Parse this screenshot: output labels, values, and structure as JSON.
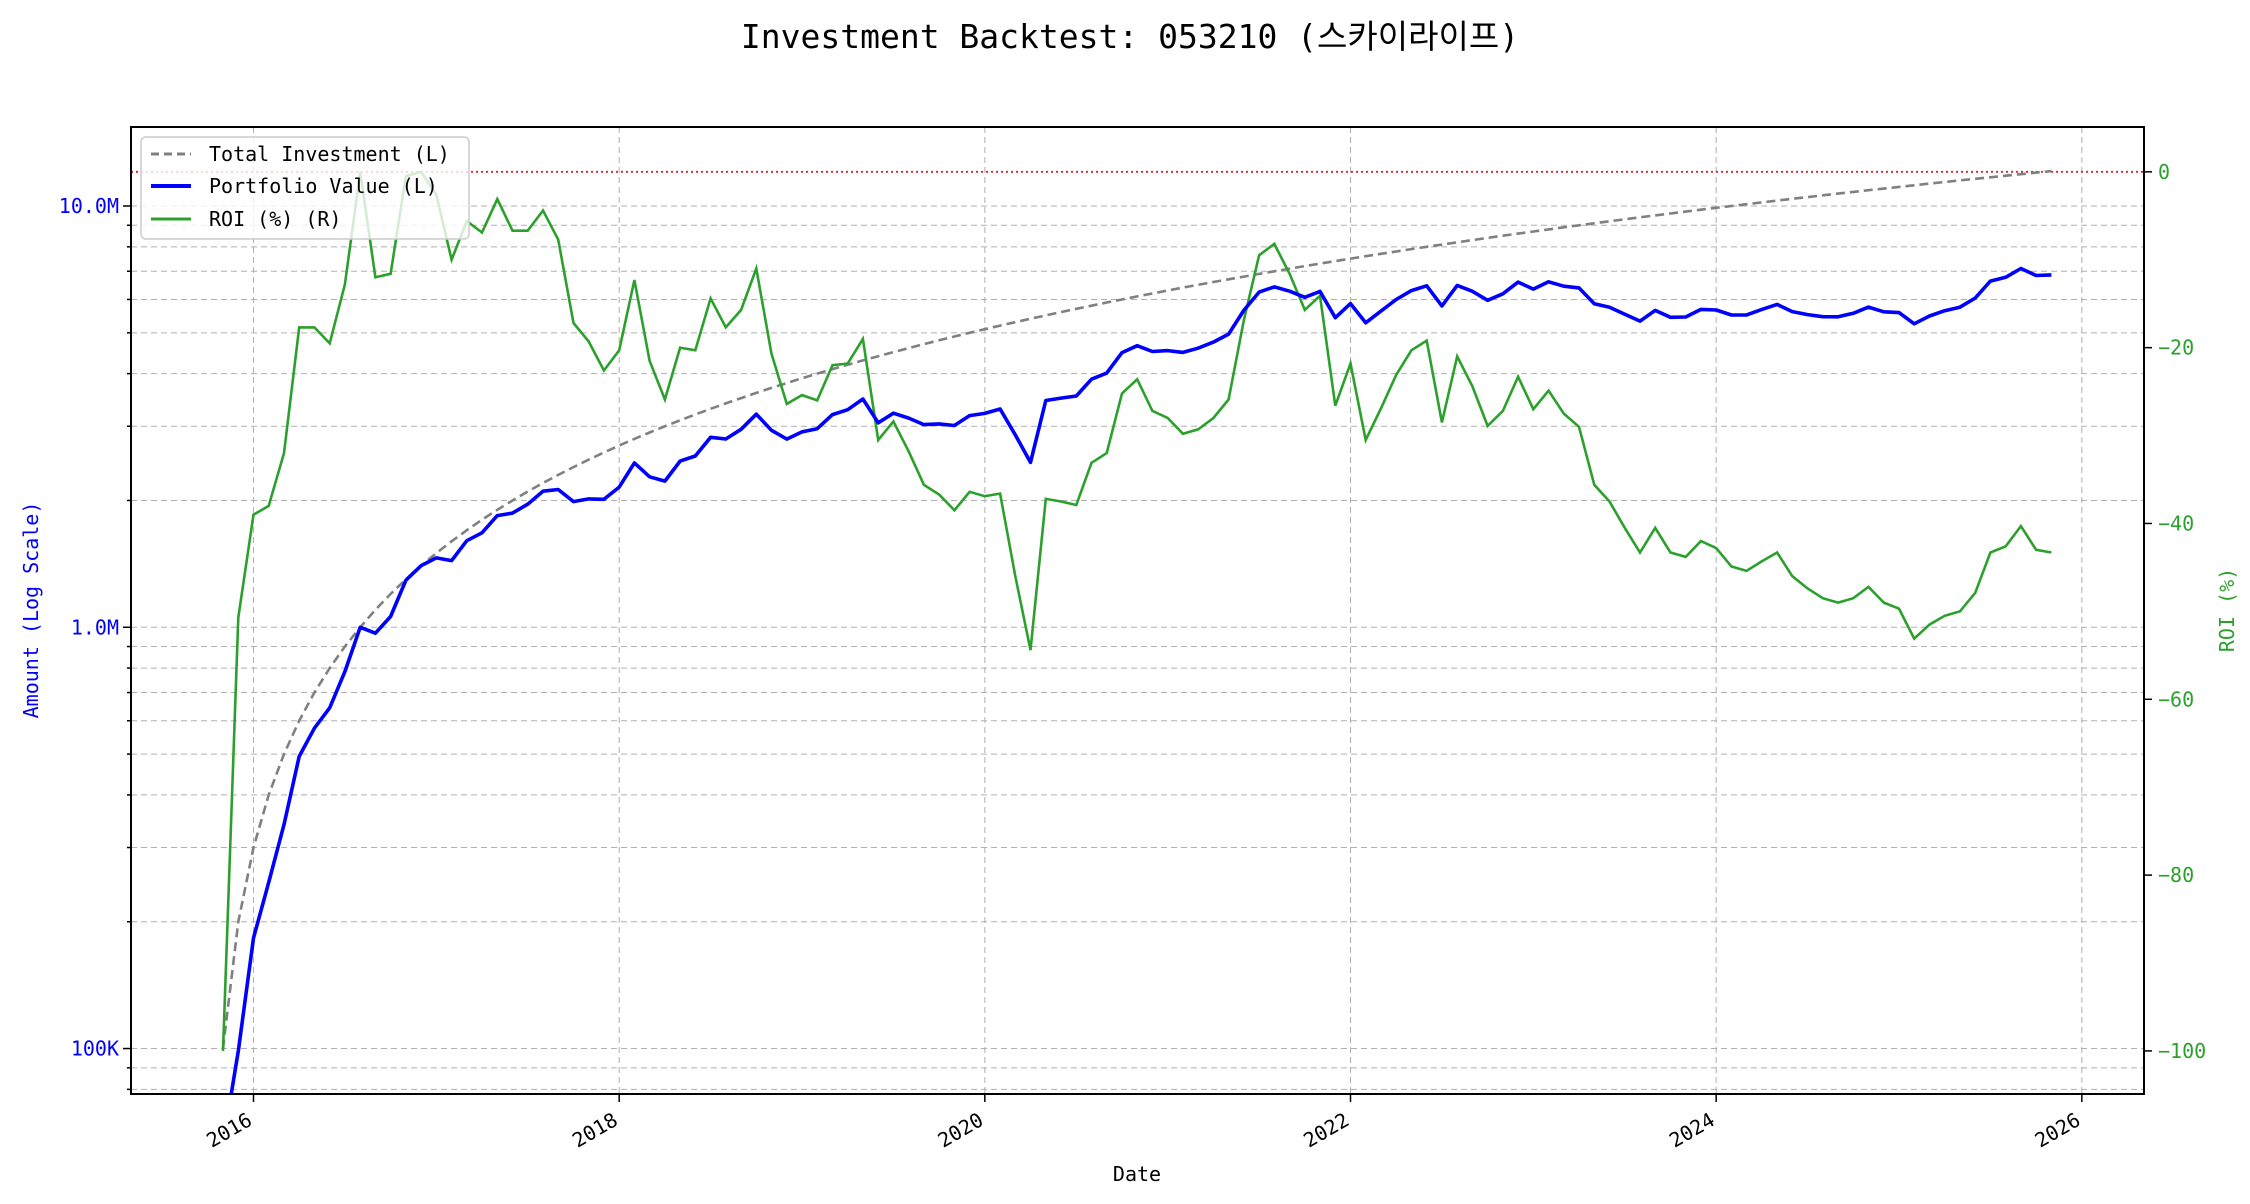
{
  "chart_data": {
    "type": "line",
    "title": "Investment Backtest: 053210 (스카이라이프)",
    "xlabel": "Date",
    "ylabel_left": "Amount (Log Scale)",
    "ylabel_right": "ROI (%)",
    "x_start": "2015-11",
    "x_frequency": "monthly",
    "x_ticks": [
      "2016",
      "2018",
      "2020",
      "2022",
      "2024",
      "2026"
    ],
    "xlim": [
      2015.33,
      2026.34
    ],
    "ylim_left": [
      78000,
      15400000
    ],
    "ylim_left_scale": "log",
    "y_ticks_left": [
      {
        "value": 100000,
        "label": "100K"
      },
      {
        "value": 1000000,
        "label": "1.0M"
      },
      {
        "value": 10000000,
        "label": "10.0M"
      }
    ],
    "ylim_right": [
      -104.9,
      5.1
    ],
    "y_ticks_right": [
      {
        "value": 0,
        "label": "0"
      },
      {
        "value": -20,
        "label": "−20"
      },
      {
        "value": -40,
        "label": "−40"
      },
      {
        "value": -60,
        "label": "−60"
      },
      {
        "value": -80,
        "label": "−80"
      },
      {
        "value": -100,
        "label": "−100"
      }
    ],
    "reference_line": {
      "axis": "right",
      "value": 0,
      "color": "#d62728",
      "style": "dotted"
    },
    "grid": true,
    "legend": {
      "position": "top-left",
      "entries": [
        "Total Investment (L)",
        "Portfolio Value (L)",
        "ROI (%) (R)"
      ]
    },
    "series": [
      {
        "name": "Total Investment (L)",
        "axis": "left",
        "color": "#808080",
        "style": "dashed",
        "start_value": 100000,
        "monthly_increment": 100000
      },
      {
        "name": "Portfolio Value (L)",
        "axis": "left",
        "color": "#0000ff",
        "style": "solid",
        "derived": "investment * (1 + roi/100)"
      },
      {
        "name": "ROI (%) (R)",
        "axis": "right",
        "color": "#2ca02c",
        "style": "solid",
        "values": [
          -100,
          -50.7,
          -39,
          -38,
          -32,
          -17.7,
          -17.7,
          -19.5,
          -12.8,
          0,
          -12,
          -11.6,
          -0.5,
          0,
          -2.6,
          -10,
          -5.6,
          -6.9,
          -3.1,
          -6.7,
          -6.7,
          -4.4,
          -7.7,
          -17.2,
          -19.3,
          -22.6,
          -20.3,
          -12.3,
          -21.5,
          -25.9,
          -20,
          -20.3,
          -14.4,
          -17.7,
          -15.7,
          -11,
          -20.7,
          -26.4,
          -25.4,
          -26,
          -22,
          -21.8,
          -19,
          -30.5,
          -28.4,
          -31.8,
          -35.6,
          -36.7,
          -38.5,
          -36.4,
          -36.9,
          -36.6,
          -46,
          -54.4,
          -37.2,
          -37.5,
          -37.9,
          -33.1,
          -32,
          -25.2,
          -23.6,
          -27.2,
          -28,
          -29.8,
          -29.3,
          -28,
          -25.9,
          -16.9,
          -9.5,
          -8.2,
          -11.6,
          -15.7,
          -14.1,
          -26.6,
          -21.8,
          -30.5,
          -26.9,
          -23.1,
          -20.3,
          -19.2,
          -28.5,
          -21,
          -24.4,
          -28.9,
          -27.2,
          -23.3,
          -27,
          -24.9,
          -27.5,
          -29,
          -35.6,
          -37.5,
          -40.5,
          -43.3,
          -40.5,
          -43.3,
          -43.8,
          -42,
          -42.8,
          -44.9,
          -45.4,
          -44.3,
          -43.3,
          -46,
          -47.4,
          -48.5,
          -49,
          -48.5,
          -47.2,
          -49,
          -49.7,
          -53.1,
          -51.5,
          -50.5,
          -50,
          -47.9,
          -43.3,
          -42.6,
          -40.3,
          -43,
          -43.3
        ]
      }
    ]
  }
}
